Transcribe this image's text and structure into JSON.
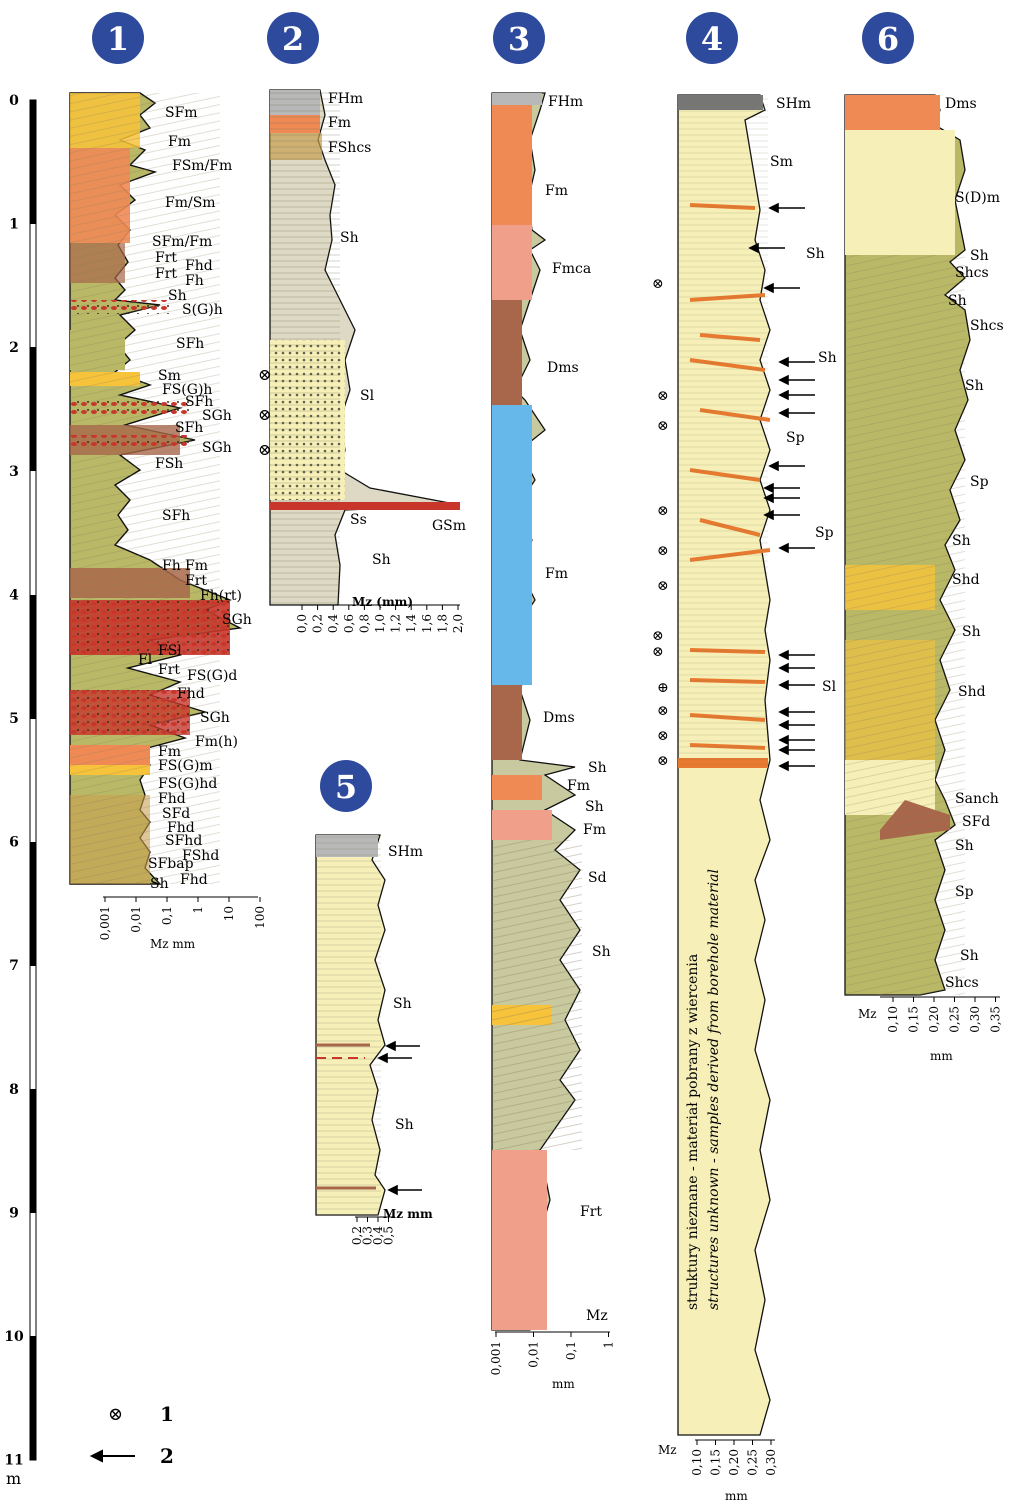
{
  "colors": {
    "badge": "#2e4a9c",
    "sand": "#f6f0b8",
    "olive": "#b8b866",
    "orange": "#ef8a55",
    "salmon": "#f0a08a",
    "brown": "#a8674a",
    "gray": "#b8b8b8",
    "blue": "#66b8ea",
    "yellow": "#f7c33a",
    "red": "#c8352a",
    "clay": "#c9b8a0"
  },
  "depth_scale": {
    "ticks": [
      "0",
      "1",
      "2",
      "3",
      "4",
      "5",
      "6",
      "7",
      "8",
      "9",
      "10",
      "11"
    ],
    "unit": "m"
  },
  "columns": [
    {
      "number": "1",
      "labels": [
        "SFm",
        "Fm",
        "FSm/Fm",
        "Fm/Sm",
        "SFm/Fm",
        "Frt",
        "Fhd",
        "Frt",
        "Fh",
        "Sh",
        "S(G)h",
        "SFh",
        "Sm",
        "FS(G)h",
        "SFh",
        "SGh",
        "SFh",
        "SGh",
        "FSh",
        "SFh",
        "Fh",
        "Fm",
        "Frt",
        "Fh(rt)",
        "SGh",
        "FSl",
        "Fl",
        "Frt",
        "FS(G)d",
        "Fhd",
        "SGh",
        "Fm(h)",
        "Fm",
        "FS(G)m",
        "FS(G)hd",
        "Fhd",
        "SFd",
        "Fhd",
        "SFhd",
        "FShd",
        "SFbap",
        "Sh",
        "Fhd"
      ],
      "axis_ticks": [
        "0,001",
        "0,01",
        "0,1",
        "1",
        "10",
        "100"
      ],
      "axis_label": "Mz mm"
    },
    {
      "number": "2",
      "labels": [
        "FHm",
        "Fm",
        "FShcs",
        "Sh",
        "Sl",
        "Ss",
        "GSm",
        "Sh"
      ],
      "axis_ticks": [
        "0,0",
        "0,2",
        "0,4",
        "0,6",
        "0,8",
        "1,0",
        "1,2",
        "1,4",
        "1,6",
        "1,8",
        "2,0"
      ],
      "axis_label": "Mz (mm)"
    },
    {
      "number": "3",
      "labels": [
        "FHm",
        "Fm",
        "Fmca",
        "Dms",
        "Fm",
        "Dms",
        "Sh",
        "Fm",
        "Sh",
        "Fm",
        "Sd",
        "Sh",
        "Frt",
        "Mz"
      ],
      "axis_ticks": [
        "0,001",
        "0,01",
        "0,1",
        "1"
      ],
      "axis_label": "mm"
    },
    {
      "number": "4",
      "labels": [
        "SHm",
        "Sm",
        "Sh",
        "Sh",
        "Sp",
        "Sp",
        "Sl"
      ],
      "axis_ticks": [
        "0,10",
        "0,15",
        "0,20",
        "0,25",
        "0,30"
      ],
      "axis_label": "mm",
      "axis_title": "Mz",
      "note_pl": "struktury nieznane - materiał pobrany z wiercenia",
      "note_en": "structures unknown - samples derived from borehole material"
    },
    {
      "number": "5",
      "labels": [
        "SHm",
        "Sh",
        "Sh"
      ],
      "axis_ticks": [
        "0,2",
        "0,3",
        "0,4",
        "0,5"
      ],
      "axis_label": "Mz mm"
    },
    {
      "number": "6",
      "labels": [
        "Dms",
        "S(D)m",
        "Sh",
        "Shcs",
        "Sh",
        "Shcs",
        "Sh",
        "Sp",
        "Sh",
        "Shd",
        "Sh",
        "Shd",
        "Sanch",
        "SFd",
        "Sh",
        "Sp",
        "Sh",
        "Shcs"
      ],
      "axis_ticks": [
        "0,10",
        "0,15",
        "0,20",
        "0,25",
        "0,30",
        "0,35"
      ],
      "axis_label": "mm",
      "axis_title": "Mz"
    }
  ],
  "legend": [
    {
      "number": "1",
      "icon": "paleocurrent-azimuth-icon"
    },
    {
      "number": "2",
      "icon": "arrow-left-icon"
    }
  ]
}
